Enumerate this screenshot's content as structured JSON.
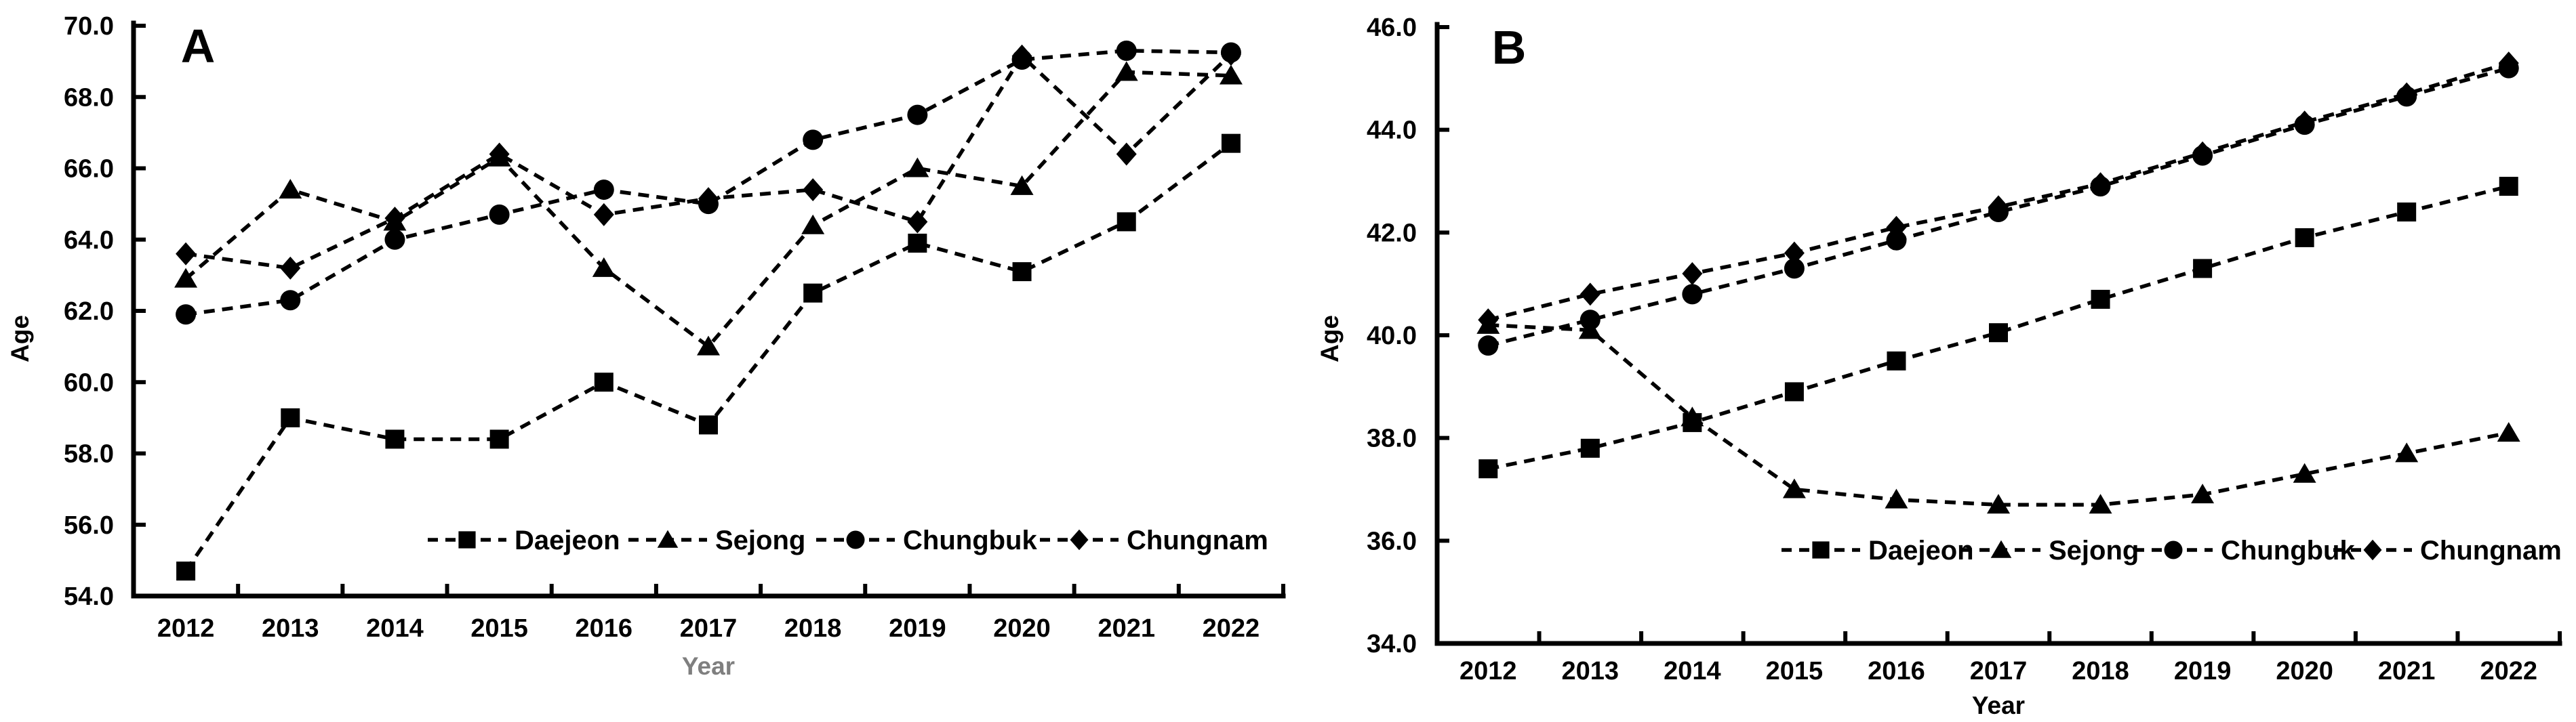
{
  "figure": {
    "background": "#ffffff",
    "line_color": "#000000",
    "panels": [
      "A",
      "B"
    ]
  },
  "chart_data": [
    {
      "type": "line",
      "panel_label": "A",
      "title": "",
      "xlabel": "Year",
      "ylabel": "Age",
      "xlabel_color": "#7f7f7f",
      "ylabel_color": "#000000",
      "ylim": [
        54.0,
        70.0
      ],
      "ytick_step": 2.0,
      "ytick_labels": [
        "70.0",
        "68.0",
        "66.0",
        "64.0",
        "62.0",
        "60.0",
        "58.0",
        "56.0",
        "54.0"
      ],
      "grid": false,
      "line_style": "dashed",
      "legend_position": "inside-bottom-right",
      "categories": [
        "2012",
        "2013",
        "2014",
        "2015",
        "2016",
        "2017",
        "2018",
        "2019",
        "2020",
        "2021",
        "2022"
      ],
      "series": [
        {
          "name": "Daejeon",
          "marker": "square",
          "values": [
            54.7,
            59.0,
            58.4,
            58.4,
            60.0,
            58.8,
            62.5,
            63.9,
            63.1,
            64.5,
            66.7
          ]
        },
        {
          "name": "Sejong",
          "marker": "triangle",
          "values": [
            62.9,
            65.4,
            64.5,
            66.3,
            63.2,
            61.0,
            64.4,
            66.0,
            65.5,
            68.7,
            68.6
          ]
        },
        {
          "name": "Chungbuk",
          "marker": "circle",
          "values": [
            61.9,
            62.3,
            64.0,
            64.7,
            65.4,
            65.0,
            66.8,
            67.5,
            69.05,
            69.3,
            69.25
          ]
        },
        {
          "name": "Chungnam",
          "marker": "diamond",
          "values": [
            63.6,
            63.2,
            64.6,
            66.4,
            64.7,
            65.15,
            65.4,
            64.5,
            69.15,
            66.4,
            69.2
          ]
        }
      ]
    },
    {
      "type": "line",
      "panel_label": "B",
      "title": "",
      "xlabel": "Year",
      "ylabel": "Age",
      "xlabel_color": "#000000",
      "ylabel_color": "#000000",
      "ylim": [
        34.0,
        46.0
      ],
      "ytick_step": 2.0,
      "ytick_labels": [
        "46.0",
        "44.0",
        "42.0",
        "40.0",
        "38.0",
        "36.0",
        "34.0"
      ],
      "grid": false,
      "line_style": "dashed",
      "legend_position": "inside-bottom-right",
      "categories": [
        "2012",
        "2013",
        "2014",
        "2015",
        "2016",
        "2017",
        "2018",
        "2019",
        "2020",
        "2021",
        "2022"
      ],
      "series": [
        {
          "name": "Daejeon",
          "marker": "square",
          "values": [
            37.4,
            37.8,
            38.3,
            38.9,
            39.5,
            40.05,
            40.7,
            41.3,
            41.9,
            42.4,
            42.9
          ]
        },
        {
          "name": "Sejong",
          "marker": "triangle",
          "values": [
            40.2,
            40.1,
            38.4,
            37.0,
            36.8,
            36.7,
            36.7,
            36.9,
            37.3,
            37.7,
            38.1
          ]
        },
        {
          "name": "Chungbuk",
          "marker": "circle",
          "values": [
            39.8,
            40.3,
            40.8,
            41.3,
            41.85,
            42.4,
            42.9,
            43.5,
            44.1,
            44.65,
            45.2
          ]
        },
        {
          "name": "Chungnam",
          "marker": "diamond",
          "values": [
            40.3,
            40.8,
            41.2,
            41.6,
            42.1,
            42.5,
            42.95,
            43.55,
            44.15,
            44.7,
            45.3
          ]
        }
      ]
    }
  ]
}
